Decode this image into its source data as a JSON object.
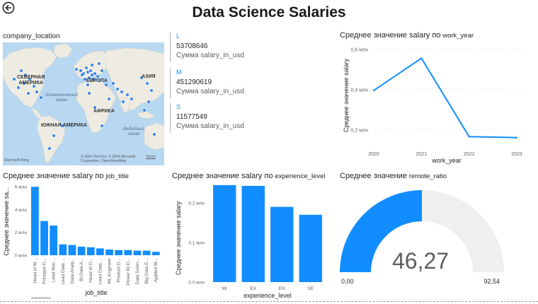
{
  "page": {
    "title": "Data Science Salaries"
  },
  "map": {
    "title": "company_location",
    "labels": {
      "north_america": "СЕВЕРНАЯ\nАМЕРИКА",
      "europe": "ЕВРОПА",
      "asia": "АЗИЯ",
      "atlantic": "Атлантический\nокеан",
      "africa": "АФРИКА",
      "south_america": "ЮЖНАЯ АМЕРИКА",
      "indian": "Индийский\nокеан"
    },
    "attribution": "© 2024 TomTom, © 2024 Microsoft Corporation, OpenStreetMap",
    "terms": "Terms",
    "brand": "Microsoft Bing",
    "colors": {
      "water": "#b8d7f1",
      "land": "#eeece2",
      "dot": "#1f77e8"
    }
  },
  "kpi": {
    "items": [
      {
        "category": "L",
        "value": "53708646",
        "label": "Сумма salary_in_usd"
      },
      {
        "category": "M",
        "value": "451290619",
        "label": "Сумма salary_in_usd"
      },
      {
        "category": "S",
        "value": "11577549",
        "label": "Сумма salary_in_usd"
      }
    ]
  },
  "line_chart": {
    "title_main": "Среднее значение salary по",
    "title_field": "work_year",
    "chart_data": {
      "type": "line",
      "x": [
        "2020",
        "2021",
        "2022",
        "2023"
      ],
      "series": [
        {
          "values": [
            0.395,
            0.555,
            0.165,
            0.16
          ]
        }
      ],
      "xlabel": "work_year",
      "ylabel": "Среднее значение salary",
      "ylim": [
        0.12,
        0.62
      ],
      "yticks": [
        0.2,
        0.4,
        0.6
      ],
      "ytick_labels": [
        "0,2 млн",
        "0,4 млн",
        "0,6 млн"
      ],
      "color": "#118dff"
    }
  },
  "job_chart": {
    "title_main": "Среднее значение salary по",
    "title_field": "job_title",
    "chart_data": {
      "type": "bar",
      "categories": [
        "Head of M...",
        "Principal D...",
        "Lead Mac...",
        "Lead Data ...",
        "Data Analy...",
        "BI Data A...",
        "Head of D...",
        "Lead Data ...",
        "ML Engineer",
        "Product D...",
        "Power BI D...",
        "Data Scien...",
        "Big Data E...",
        "Applied M..."
      ],
      "values": [
        6.0,
        3.0,
        2.6,
        0.95,
        0.9,
        0.75,
        0.7,
        0.6,
        0.5,
        0.45,
        0.45,
        0.4,
        0.4,
        0.3
      ],
      "xlabel": "job_title",
      "ylabel": "Среднее значение sa...",
      "ylim": [
        0,
        6.2
      ],
      "yticks": [
        0,
        2,
        4,
        6
      ],
      "ytick_labels": [
        "0 млн",
        "2 млн",
        "4 млн",
        "6 млн"
      ],
      "color": "#118dff"
    }
  },
  "exp_chart": {
    "title_main": "Среднее значение salary по",
    "title_field": "experience_level",
    "chart_data": {
      "type": "bar",
      "categories": [
        "MI",
        "EX",
        "EN",
        "SE"
      ],
      "values": [
        0.245,
        0.243,
        0.19,
        0.17
      ],
      "xlabel": "experience_level",
      "ylabel": "Среднее значение salary",
      "ylim": [
        0,
        0.25
      ],
      "yticks": [
        0,
        0.1,
        0.2
      ],
      "ytick_labels": [
        "0,0 млн",
        "0,1 млн",
        "0,2 млн"
      ],
      "color": "#118dff"
    }
  },
  "gauge": {
    "title_main": "Среднее значение",
    "title_field": "remote_ratio",
    "value_label": "46,27",
    "min_label": "0,00",
    "max_label": "92,54",
    "value": 46.27,
    "max": 92.54,
    "colors": {
      "fill": "#118dff",
      "track": "#f0efee"
    }
  }
}
